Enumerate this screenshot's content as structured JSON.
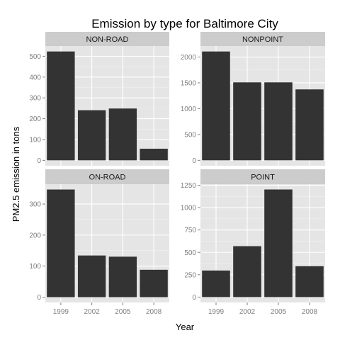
{
  "chart_data": {
    "type": "bar",
    "title": "Emission by type for Baltimore City",
    "xlabel": "Year",
    "ylabel": "PM2.5 emission in tons",
    "categories": [
      "1999",
      "2002",
      "2005",
      "2008"
    ],
    "facets": [
      {
        "name": "NON-ROAD",
        "values": [
          522.94,
          240.85,
          248.93,
          55.82
        ],
        "ylim": [
          -26,
          549
        ],
        "yticks": [
          0,
          100,
          200,
          300,
          400,
          500
        ]
      },
      {
        "name": "NONPOINT",
        "values": [
          2107.6,
          1509.5,
          1509.5,
          1373.2
        ],
        "ylim": [
          -105,
          2213
        ],
        "yticks": [
          0,
          500,
          1000,
          1500,
          2000
        ]
      },
      {
        "name": "ON-ROAD",
        "values": [
          346.82,
          134.31,
          130.43,
          88.28
        ],
        "ylim": [
          -17,
          364
        ],
        "yticks": [
          0,
          100,
          200,
          300
        ]
      },
      {
        "name": "POINT",
        "values": [
          296.8,
          569.26,
          1202.49,
          344.98
        ],
        "ylim": [
          -60,
          1262
        ],
        "yticks": [
          0,
          250,
          500,
          750,
          1000,
          1250
        ]
      }
    ],
    "grid": true,
    "bar_color": "#333333",
    "panel_background": "#e5e5e5",
    "strip_background": "#cccccc"
  }
}
